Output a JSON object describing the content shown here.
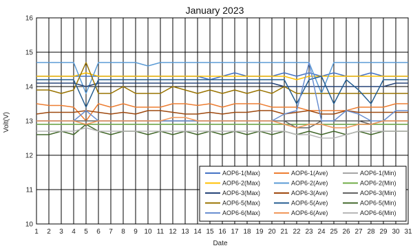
{
  "chart_data": {
    "type": "line",
    "title": "January 2023",
    "xlabel": "Date",
    "ylabel": "Volt(V)",
    "x": [
      1,
      2,
      3,
      4,
      5,
      6,
      7,
      8,
      9,
      10,
      11,
      12,
      13,
      14,
      15,
      16,
      17,
      18,
      19,
      20,
      21,
      22,
      23,
      24,
      25,
      26,
      27,
      28,
      29,
      30,
      31
    ],
    "xlim": [
      1,
      31
    ],
    "ylim": [
      10,
      16
    ],
    "yticks": [
      10,
      11,
      12,
      13,
      14,
      15,
      16
    ],
    "grid": true,
    "legend_position": "bottom-right",
    "series": [
      {
        "name": "AOP6-1(Max)",
        "color": "#4472c4",
        "values": [
          14.3,
          14.3,
          14.3,
          14.3,
          14.3,
          14.3,
          14.3,
          14.3,
          14.3,
          14.3,
          14.3,
          14.3,
          14.3,
          14.3,
          14.2,
          14.3,
          14.4,
          14.3,
          14.3,
          14.3,
          14.4,
          14.3,
          14.4,
          14.3,
          14.4,
          14.3,
          14.3,
          14.4,
          14.3,
          14.3,
          14.3
        ]
      },
      {
        "name": "AOP6-1(Ave)",
        "color": "#ed7d31",
        "values": [
          13.5,
          13.45,
          13.45,
          13.4,
          13.0,
          13.5,
          13.4,
          13.5,
          13.4,
          13.4,
          13.4,
          13.5,
          13.5,
          13.45,
          13.5,
          13.4,
          13.5,
          13.5,
          13.5,
          13.4,
          13.4,
          13.4,
          13.3,
          13.3,
          13.3,
          13.3,
          13.4,
          13.4,
          13.4,
          13.5,
          13.5
        ]
      },
      {
        "name": "AOP6-1(Min)",
        "color": "#a5a5a5",
        "values": [
          12.9,
          12.9,
          12.9,
          12.9,
          12.9,
          12.9,
          12.9,
          12.9,
          12.9,
          12.9,
          12.9,
          12.9,
          12.9,
          12.9,
          12.9,
          12.9,
          12.9,
          12.9,
          12.9,
          12.9,
          12.9,
          12.9,
          12.9,
          12.9,
          12.9,
          12.9,
          12.9,
          12.9,
          12.9,
          12.9,
          12.9
        ]
      },
      {
        "name": "AOP6-2(Max)",
        "color": "#ffc000",
        "values": [
          14.3,
          14.3,
          14.3,
          14.3,
          14.4,
          14.3,
          14.3,
          14.3,
          14.3,
          14.3,
          14.3,
          14.3,
          14.3,
          14.3,
          14.3,
          14.3,
          14.3,
          14.3,
          14.3,
          14.3,
          14.3,
          14.2,
          14.3,
          14.3,
          14.3,
          14.3,
          14.3,
          14.3,
          14.3,
          14.3,
          14.3
        ]
      },
      {
        "name": "AOP6-2(Ave)",
        "color": "#5b9bd5",
        "values": [
          14.7,
          14.7,
          14.7,
          14.7,
          13.8,
          14.7,
          14.7,
          14.7,
          14.7,
          14.6,
          14.7,
          14.7,
          14.7,
          14.7,
          14.7,
          14.7,
          14.7,
          14.7,
          14.7,
          14.7,
          14.7,
          14.7,
          14.7,
          13.8,
          14.7,
          14.7,
          14.7,
          14.7,
          14.7,
          14.7,
          14.7
        ]
      },
      {
        "name": "AOP6-2(Min)",
        "color": "#70ad47",
        "values": [
          12.9,
          12.9,
          12.9,
          12.9,
          12.9,
          12.9,
          12.9,
          12.9,
          12.9,
          12.9,
          12.9,
          12.9,
          12.9,
          12.9,
          12.9,
          12.9,
          12.9,
          12.9,
          12.9,
          12.9,
          12.9,
          12.9,
          12.9,
          12.9,
          12.9,
          12.9,
          12.9,
          12.9,
          12.9,
          12.9,
          12.9
        ]
      },
      {
        "name": "AOP6-3(Max)",
        "color": "#264478",
        "values": [
          14.1,
          14.1,
          14.1,
          14.1,
          14.0,
          14.1,
          14.1,
          14.1,
          14.1,
          14.1,
          14.1,
          14.1,
          14.1,
          14.1,
          14.1,
          14.1,
          14.1,
          14.1,
          14.1,
          14.1,
          14.0,
          14.0,
          14.0,
          14.0,
          14.0,
          14.0,
          14.0,
          14.0,
          14.0,
          14.1,
          14.1
        ]
      },
      {
        "name": "AOP6-3(Ave)",
        "color": "#9e480e",
        "values": [
          13.2,
          13.25,
          13.25,
          13.25,
          13.3,
          13.25,
          13.2,
          13.25,
          13.2,
          13.3,
          13.3,
          13.25,
          13.2,
          13.2,
          13.25,
          13.2,
          13.25,
          13.25,
          13.3,
          13.3,
          13.2,
          13.25,
          13.3,
          13.2,
          13.2,
          13.3,
          13.25,
          13.25,
          13.25,
          13.25,
          13.25
        ]
      },
      {
        "name": "AOP6-3(Min)",
        "color": "#636363",
        "values": [
          13.0,
          13.0,
          13.0,
          13.0,
          13.0,
          13.0,
          13.0,
          13.0,
          13.0,
          13.0,
          13.0,
          13.0,
          13.0,
          13.0,
          13.0,
          13.0,
          13.0,
          13.0,
          13.0,
          13.0,
          13.0,
          12.8,
          12.8,
          13.0,
          13.0,
          13.0,
          13.0,
          12.9,
          13.0,
          13.0,
          13.0
        ]
      },
      {
        "name": "AOP6-5(Max)",
        "color": "#997300",
        "values": [
          13.9,
          13.9,
          13.8,
          13.9,
          14.7,
          13.8,
          13.8,
          14.0,
          13.8,
          13.8,
          13.8,
          14.0,
          13.9,
          13.8,
          13.9,
          13.8,
          13.9,
          13.8,
          13.9,
          13.8,
          14.0,
          13.8,
          13.8,
          13.8,
          13.8,
          13.8,
          13.8,
          13.8,
          13.8,
          13.8,
          13.8
        ]
      },
      {
        "name": "AOP6-5(Ave)",
        "color": "#255e91",
        "values": [
          14.2,
          14.2,
          14.2,
          14.2,
          13.4,
          14.2,
          14.2,
          14.2,
          14.2,
          14.2,
          14.2,
          14.2,
          14.2,
          14.2,
          14.2,
          14.2,
          14.2,
          14.2,
          14.2,
          14.2,
          14.2,
          13.5,
          14.2,
          14.3,
          13.5,
          14.2,
          13.9,
          13.5,
          14.2,
          14.2,
          14.2
        ]
      },
      {
        "name": "AOP6-5(Min)",
        "color": "#43682b",
        "values": [
          12.6,
          12.6,
          12.7,
          12.6,
          12.9,
          12.7,
          12.6,
          12.7,
          12.7,
          12.6,
          12.7,
          12.6,
          12.7,
          12.6,
          12.7,
          12.6,
          12.7,
          12.6,
          12.7,
          12.6,
          12.7,
          12.6,
          12.7,
          12.6,
          12.7,
          12.6,
          12.7,
          12.6,
          12.7,
          12.7,
          12.7
        ]
      },
      {
        "name": "AOP6-6(Max)",
        "color": "#698ed0",
        "values": [
          13.0,
          13.0,
          13.0,
          13.0,
          13.3,
          13.0,
          13.0,
          13.0,
          13.0,
          13.0,
          13.0,
          13.0,
          13.0,
          13.0,
          13.0,
          13.0,
          13.0,
          13.0,
          13.0,
          13.0,
          13.2,
          13.3,
          14.7,
          13.0,
          13.0,
          13.3,
          13.2,
          13.0,
          13.0,
          13.3,
          13.3
        ]
      },
      {
        "name": "AOP6-6(Ave)",
        "color": "#f1975a",
        "values": [
          13.0,
          13.0,
          13.0,
          13.0,
          12.9,
          13.0,
          13.0,
          13.0,
          13.0,
          13.0,
          13.0,
          13.1,
          13.1,
          13.0,
          13.0,
          13.0,
          13.0,
          13.0,
          13.0,
          13.0,
          12.9,
          12.8,
          12.9,
          12.9,
          12.8,
          12.8,
          12.9,
          12.9,
          13.0,
          13.0,
          13.0
        ]
      },
      {
        "name": "AOP6-6(Min)",
        "color": "#b7b7b7",
        "values": [
          12.7,
          12.7,
          12.7,
          12.7,
          12.8,
          12.7,
          12.7,
          12.7,
          12.7,
          12.7,
          12.7,
          12.7,
          12.7,
          12.7,
          12.7,
          12.7,
          12.7,
          12.7,
          12.7,
          12.7,
          12.7,
          12.6,
          12.6,
          12.5,
          12.5,
          12.6,
          12.7,
          12.7,
          12.7,
          12.7,
          12.7
        ]
      }
    ]
  }
}
